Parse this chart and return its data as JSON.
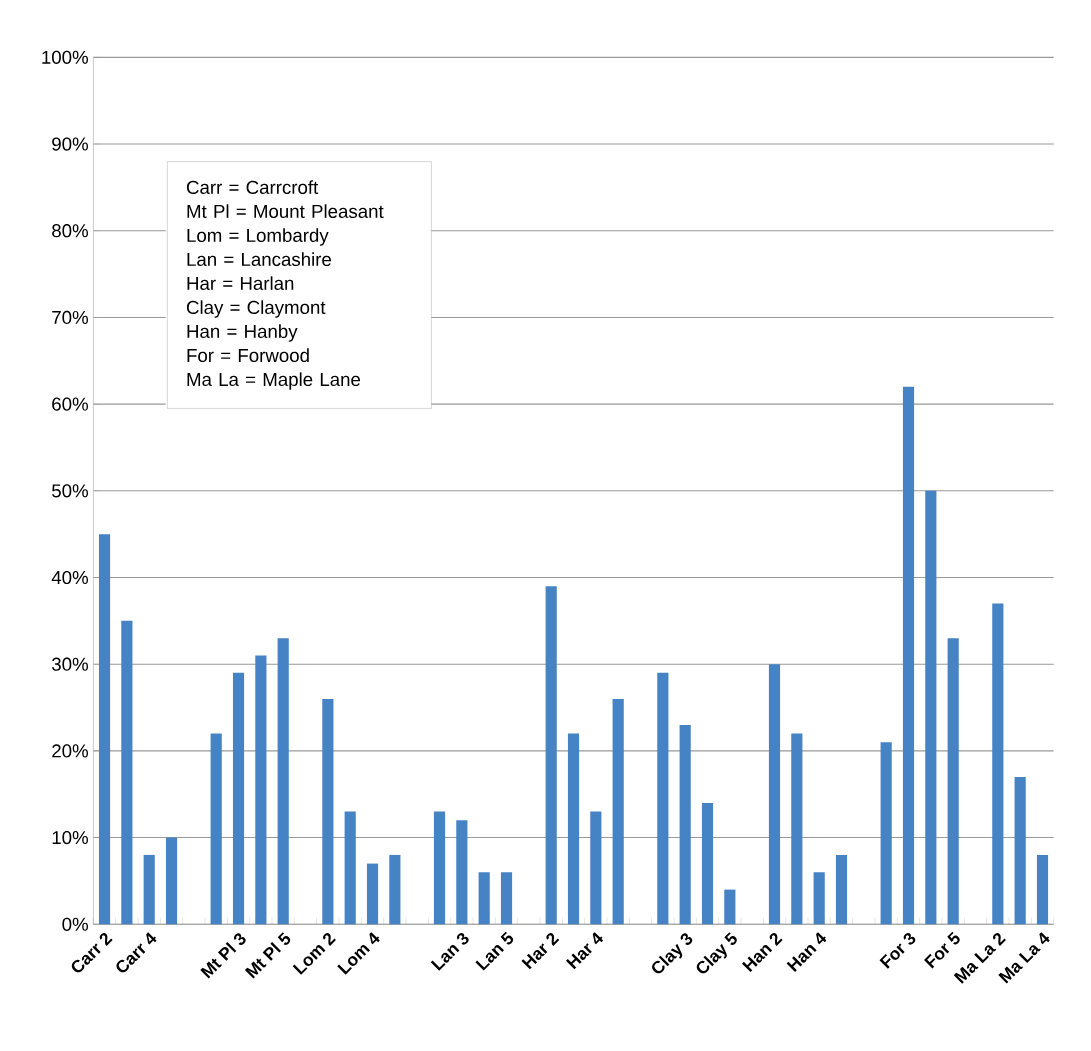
{
  "chart_data": {
    "type": "bar",
    "categories": [
      "Carr 2",
      null,
      "Carr 4",
      null,
      null,
      null,
      "Mt Pl 3",
      null,
      "Mt Pl 5",
      null,
      "Lom 2",
      null,
      "Lom 4",
      null,
      null,
      null,
      "Lan 3",
      null,
      "Lan 5",
      null,
      "Har 2",
      null,
      "Har 4",
      null,
      null,
      null,
      "Clay 3",
      null,
      "Clay 5",
      null,
      "Han 2",
      null,
      "Han 4",
      null,
      null,
      null,
      "For 3",
      null,
      "For 5",
      null,
      "Ma La 2",
      null,
      "Ma La 4"
    ],
    "values": [
      45,
      35,
      8,
      10,
      null,
      22,
      29,
      31,
      33,
      null,
      26,
      13,
      7,
      8,
      null,
      13,
      12,
      6,
      6,
      null,
      39,
      22,
      13,
      26,
      null,
      29,
      23,
      14,
      4,
      null,
      30,
      22,
      6,
      8,
      null,
      21,
      62,
      50,
      33,
      null,
      37,
      17,
      8
    ],
    "color": "#4683c4",
    "ylim": [
      0,
      100
    ],
    "yticks": [
      {
        "value": 0,
        "label": "0%"
      },
      {
        "value": 10,
        "label": "10%"
      },
      {
        "value": 20,
        "label": "20%"
      },
      {
        "value": 30,
        "label": "30%"
      },
      {
        "value": 40,
        "label": "40%"
      },
      {
        "value": 50,
        "label": "50%"
      },
      {
        "value": 60,
        "label": "60%"
      },
      {
        "value": 70,
        "label": "70%"
      },
      {
        "value": 80,
        "label": "80%"
      },
      {
        "value": 90,
        "label": "90%"
      },
      {
        "value": 100,
        "label": "100%"
      }
    ],
    "grid": "y",
    "annotations": [
      "Carr = Carrcroft",
      "Mt Pl = Mount Pleasant",
      "Lom = Lombardy",
      "Lan = Lancashire",
      "Har = Harlan",
      "Clay = Claymont",
      "Han = Hanby",
      "For = Forwood",
      "Ma La = Maple Lane"
    ]
  }
}
